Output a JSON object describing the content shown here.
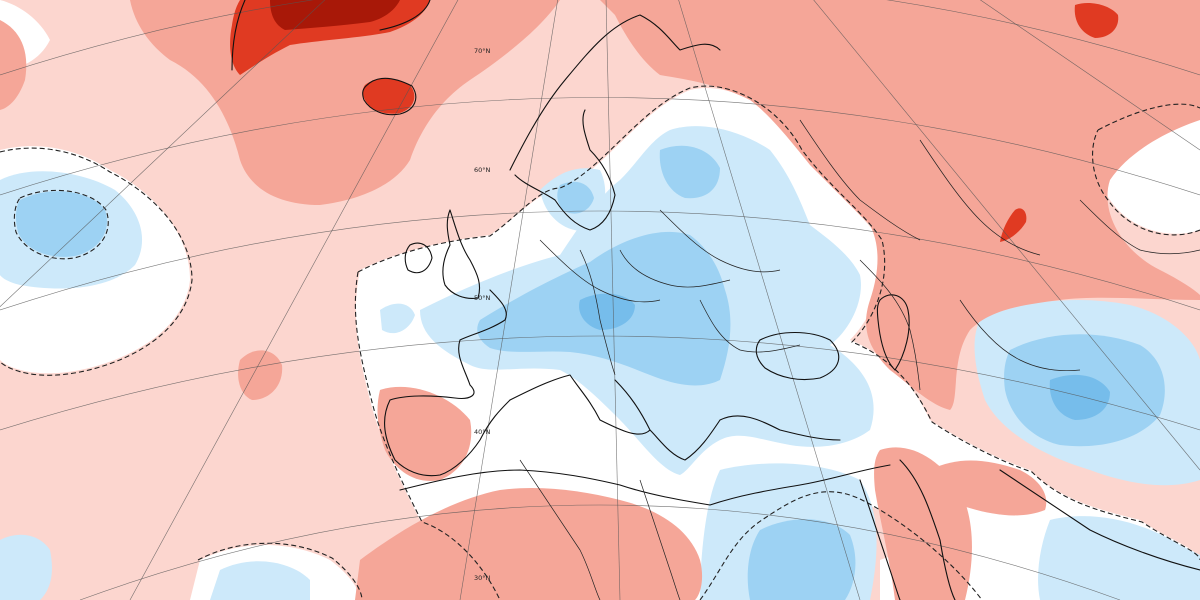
{
  "map": {
    "projection": "polar-stereographic",
    "region": "Europe, North Atlantic, North Africa, Middle East",
    "colors": {
      "background": "#ffffff",
      "anomaly_strong_warm": "#e03a22",
      "anomaly_very_strong_warm": "#a81808",
      "anomaly_warm": "#f5a698",
      "anomaly_weak_warm": "#fcd6cf",
      "anomaly_weak_cold": "#cde9fa",
      "anomaly_cold": "#9dd2f3",
      "anomaly_strong_cold": "#76bdeb",
      "coastline": "#111111",
      "grid": "#555555"
    },
    "latitude_labels": [
      {
        "id": "lat-70",
        "text": "70°N"
      },
      {
        "id": "lat-60",
        "text": "60°N"
      },
      {
        "id": "lat-50",
        "text": "50°N"
      },
      {
        "id": "lat-40",
        "text": "40°N"
      },
      {
        "id": "lat-30",
        "text": "30°N"
      }
    ]
  }
}
